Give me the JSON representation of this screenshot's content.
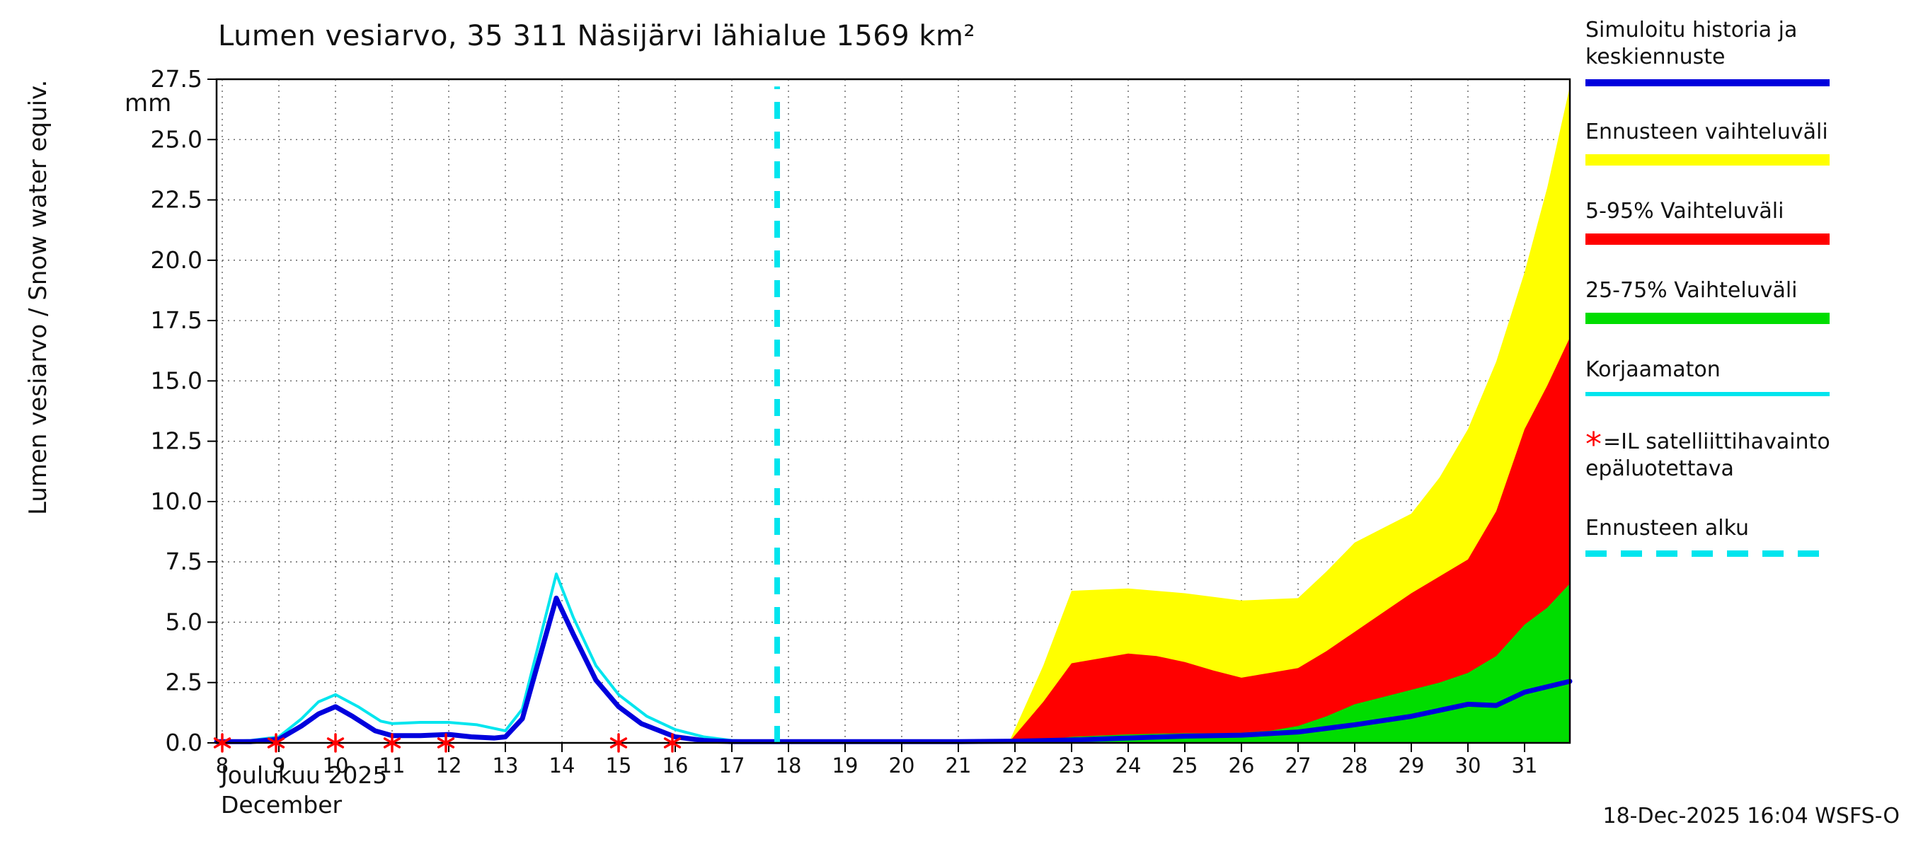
{
  "header": {
    "title": "Lumen vesiarvo, 35 311 Näsijärvi lähialue 1569 km²"
  },
  "axes": {
    "y_label": "Lumen vesiarvo / Snow water equiv.",
    "y_unit": "mm",
    "x_label_fi": "Joulukuu  2025",
    "x_label_en": "December"
  },
  "footer": {
    "timestamp": "18-Dec-2025 16:04 WSFS-O"
  },
  "legend": {
    "items": [
      {
        "label": "Simuloitu historia ja\nkeskiennuste",
        "color": "#0000dd",
        "bar": "line"
      },
      {
        "label": "Ennusteen vaihteluväli",
        "color": "#ffff00",
        "bar": "band"
      },
      {
        "label": "5-95% Vaihteluväli",
        "color": "#ff0000",
        "bar": "band"
      },
      {
        "label": "25-75% Vaihteluväli",
        "color": "#00dd00",
        "bar": "band"
      },
      {
        "label": "Korjaamaton",
        "color": "#00e5ee",
        "bar": "thin"
      },
      {
        "label": "=IL satelliittihavainto\nepäluotettava",
        "color": "#ff0000",
        "marker": "*"
      },
      {
        "label": "Ennusteen alku",
        "color": "#00e5ee",
        "bar": "dashed"
      }
    ]
  },
  "chart_data": {
    "type": "line+area",
    "title": "Lumen vesiarvo, 35 311 Näsijärvi lähialue 1569 km²",
    "xlabel": "Joulukuu 2025 / December",
    "ylabel": "Lumen vesiarvo / Snow water equiv. (mm)",
    "x_range": [
      7.9,
      31.8
    ],
    "y_range": [
      0,
      27.5
    ],
    "xticks": [
      8,
      9,
      10,
      11,
      12,
      13,
      14,
      15,
      16,
      17,
      18,
      19,
      20,
      21,
      22,
      23,
      24,
      25,
      26,
      27,
      28,
      29,
      30,
      31
    ],
    "yticks": [
      0,
      2.5,
      5,
      7.5,
      10,
      12.5,
      15,
      17.5,
      20,
      22.5,
      25,
      27.5
    ],
    "grid": true,
    "legend_position": "right",
    "forecast_line": {
      "name": "Ennusteen alku",
      "x": 17.8,
      "y_top": 27.2,
      "color": "#00e5ee"
    },
    "bands": [
      {
        "name": "Ennusteen vaihteluväli",
        "color": "#ffff00",
        "x": [
          21.9,
          22.5,
          23,
          23.5,
          24,
          24.5,
          25,
          25.5,
          26,
          26.5,
          27,
          27.5,
          28,
          28.5,
          29,
          29.5,
          30,
          30.5,
          31,
          31.4,
          31.8
        ],
        "top": [
          0.05,
          3.2,
          6.3,
          6.35,
          6.4,
          6.3,
          6.2,
          6.05,
          5.9,
          5.95,
          6.0,
          7.1,
          8.3,
          8.9,
          9.5,
          11.0,
          13.0,
          15.8,
          19.5,
          23.0,
          27.2
        ],
        "bottom": 0
      },
      {
        "name": "5-95% Vaihteluväli",
        "color": "#ff0000",
        "x": [
          21.9,
          22.5,
          23,
          23.5,
          24,
          24.5,
          25,
          25.5,
          26,
          26.5,
          27,
          27.5,
          28,
          28.5,
          29,
          29.5,
          30,
          30.5,
          31,
          31.4,
          31.8
        ],
        "top": [
          0.04,
          1.7,
          3.3,
          3.5,
          3.7,
          3.6,
          3.35,
          3.0,
          2.7,
          2.9,
          3.1,
          3.8,
          4.6,
          5.4,
          6.2,
          6.9,
          7.6,
          9.6,
          13.0,
          14.8,
          16.8
        ],
        "bottom": 0
      },
      {
        "name": "25-75% Vaihteluväli",
        "color": "#00dd00",
        "x": [
          21.9,
          22.5,
          23,
          23.5,
          24,
          24.5,
          25,
          25.5,
          26,
          26.5,
          27,
          27.5,
          28,
          28.5,
          29,
          29.5,
          30,
          30.5,
          31,
          31.4,
          31.8
        ],
        "top": [
          0.03,
          0.12,
          0.25,
          0.3,
          0.35,
          0.38,
          0.4,
          0.4,
          0.42,
          0.5,
          0.7,
          1.1,
          1.6,
          1.9,
          2.2,
          2.5,
          2.9,
          3.6,
          4.9,
          5.6,
          6.6
        ],
        "bottom": 0
      }
    ],
    "lines": [
      {
        "name": "Korjaamaton",
        "color": "#00e5ee",
        "width": 4,
        "x": [
          7.9,
          8.5,
          9.0,
          9.4,
          9.7,
          10.0,
          10.4,
          10.8,
          11.0,
          11.5,
          12.0,
          12.5,
          13.0,
          13.3,
          13.6,
          13.9,
          14.2,
          14.6,
          15.0,
          15.5,
          16.0,
          16.5,
          17.0,
          17.8
        ],
        "y": [
          0.05,
          0.1,
          0.25,
          1.0,
          1.7,
          2.0,
          1.5,
          0.9,
          0.8,
          0.85,
          0.85,
          0.75,
          0.5,
          1.4,
          4.2,
          7.0,
          5.2,
          3.2,
          2.0,
          1.1,
          0.55,
          0.25,
          0.1,
          0.05
        ]
      },
      {
        "name": "Simuloitu historia ja keskiennuste",
        "color": "#0000dd",
        "width": 7,
        "x": [
          7.9,
          8.5,
          9.0,
          9.4,
          9.7,
          10.0,
          10.3,
          10.7,
          11.0,
          11.5,
          12.0,
          12.4,
          12.8,
          13.0,
          13.3,
          13.6,
          13.9,
          14.2,
          14.6,
          15.0,
          15.4,
          16.0,
          16.5,
          17.0,
          17.8,
          19.0,
          20.0,
          21.0,
          22.0,
          23.0,
          24.0,
          25.0,
          26.0,
          27.0,
          28.0,
          29.0,
          30.0,
          30.5,
          31.0,
          31.8
        ],
        "y": [
          0.05,
          0.05,
          0.15,
          0.7,
          1.2,
          1.5,
          1.1,
          0.5,
          0.3,
          0.3,
          0.35,
          0.25,
          0.2,
          0.25,
          1.0,
          3.5,
          6.0,
          4.5,
          2.6,
          1.5,
          0.8,
          0.25,
          0.1,
          0.05,
          0.05,
          0.05,
          0.05,
          0.05,
          0.07,
          0.12,
          0.2,
          0.28,
          0.32,
          0.45,
          0.75,
          1.1,
          1.6,
          1.55,
          2.1,
          2.55
        ]
      }
    ],
    "markers": {
      "name": "IL satelliittihavainto epäluotettava",
      "symbol": "asterisk",
      "color": "#ff0000",
      "x": [
        8.0,
        8.95,
        10.0,
        11.0,
        11.95,
        15.0,
        15.95
      ],
      "y": [
        0,
        0,
        0,
        0,
        0,
        0,
        0
      ]
    }
  }
}
